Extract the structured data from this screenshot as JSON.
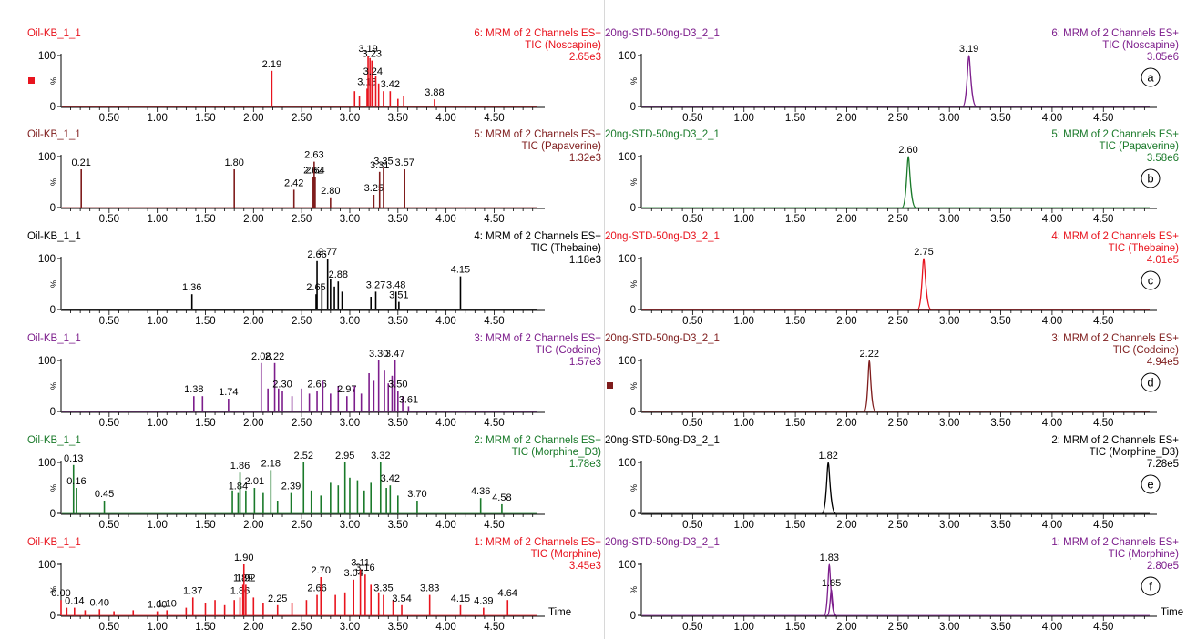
{
  "colors": {
    "red": "#e8141e",
    "maroon": "#7f1d1d",
    "black": "#000000",
    "purple": "#7d1e8c",
    "green": "#1a7a2a"
  },
  "x_axis": {
    "ticks": [
      "0.50",
      "1.00",
      "1.50",
      "2.00",
      "2.50",
      "3.00",
      "3.50",
      "4.00",
      "4.50"
    ],
    "label": "Time",
    "range": [
      0,
      4.95
    ]
  },
  "y_axis": {
    "ticks": [
      "100",
      "0"
    ],
    "unit": "%"
  },
  "chart_data": [
    {
      "type": "line",
      "column": "left",
      "row": 0,
      "color_key": "red",
      "marker": true,
      "sample": "Oil-KB_1_1",
      "channel": "6: MRM of 2 Channels ES+",
      "compound": "TIC (Noscapine)",
      "intensity": "2.65e3",
      "ylim": [
        0,
        100
      ],
      "peaks": [
        {
          "x": 2.19,
          "y": 70,
          "label": "2.19"
        },
        {
          "x": 3.05,
          "y": 30
        },
        {
          "x": 3.1,
          "y": 20
        },
        {
          "x": 3.18,
          "y": 35,
          "label": "3.18"
        },
        {
          "x": 3.19,
          "y": 100,
          "label": "3.19"
        },
        {
          "x": 3.21,
          "y": 95
        },
        {
          "x": 3.23,
          "y": 90,
          "label": "3.23"
        },
        {
          "x": 3.24,
          "y": 55,
          "label": "3.24"
        },
        {
          "x": 3.27,
          "y": 60
        },
        {
          "x": 3.3,
          "y": 45
        },
        {
          "x": 3.35,
          "y": 30
        },
        {
          "x": 3.42,
          "y": 30,
          "label": "3.42"
        },
        {
          "x": 3.5,
          "y": 15
        },
        {
          "x": 3.56,
          "y": 20
        },
        {
          "x": 3.88,
          "y": 14,
          "label": "3.88"
        }
      ]
    },
    {
      "type": "line",
      "column": "left",
      "row": 1,
      "color_key": "maroon",
      "sample": "Oil-KB_1_1",
      "channel": "5: MRM of 2 Channels ES+",
      "compound": "TIC (Papaverine)",
      "intensity": "1.32e3",
      "ylim": [
        0,
        100
      ],
      "peaks": [
        {
          "x": 0.21,
          "y": 75,
          "label": "0.21"
        },
        {
          "x": 1.8,
          "y": 75,
          "label": "1.80"
        },
        {
          "x": 2.42,
          "y": 35,
          "label": "2.42"
        },
        {
          "x": 2.62,
          "y": 60,
          "label": "2.62"
        },
        {
          "x": 2.63,
          "y": 90,
          "label": "2.63"
        },
        {
          "x": 2.64,
          "y": 60,
          "label": "2.64"
        },
        {
          "x": 2.8,
          "y": 20,
          "label": "2.80"
        },
        {
          "x": 3.25,
          "y": 25,
          "label": "3.25"
        },
        {
          "x": 3.31,
          "y": 70,
          "label": "3.31"
        },
        {
          "x": 3.35,
          "y": 78,
          "label": "3.35"
        },
        {
          "x": 3.57,
          "y": 75,
          "label": "3.57"
        }
      ]
    },
    {
      "type": "line",
      "column": "left",
      "row": 2,
      "color_key": "black",
      "sample": "Oil-KB_1_1",
      "channel": "4: MRM of 2 Channels ES+",
      "compound": "TIC (Thebaine)",
      "intensity": "1.18e3",
      "ylim": [
        0,
        100
      ],
      "peaks": [
        {
          "x": 1.36,
          "y": 30,
          "label": "1.36"
        },
        {
          "x": 2.65,
          "y": 30,
          "label": "2.65"
        },
        {
          "x": 2.66,
          "y": 95,
          "label": "2.66"
        },
        {
          "x": 2.71,
          "y": 50
        },
        {
          "x": 2.77,
          "y": 100,
          "label": "2.77"
        },
        {
          "x": 2.8,
          "y": 60
        },
        {
          "x": 2.84,
          "y": 45
        },
        {
          "x": 2.88,
          "y": 55,
          "label": "2.88"
        },
        {
          "x": 2.92,
          "y": 35
        },
        {
          "x": 3.22,
          "y": 25
        },
        {
          "x": 3.27,
          "y": 35,
          "label": "3.27"
        },
        {
          "x": 3.48,
          "y": 35,
          "label": "3.48"
        },
        {
          "x": 3.51,
          "y": 15,
          "label": "3.51"
        },
        {
          "x": 4.15,
          "y": 65,
          "label": "4.15"
        }
      ]
    },
    {
      "type": "line",
      "column": "left",
      "row": 3,
      "color_key": "purple",
      "sample": "Oil-KB_1_1",
      "channel": "3: MRM of 2 Channels ES+",
      "compound": "TIC (Codeine)",
      "intensity": "1.57e3",
      "ylim": [
        0,
        100
      ],
      "peaks": [
        {
          "x": 1.38,
          "y": 30,
          "label": "1.38"
        },
        {
          "x": 1.47,
          "y": 30
        },
        {
          "x": 1.74,
          "y": 25,
          "label": "1.74"
        },
        {
          "x": 2.08,
          "y": 95,
          "label": "2.08"
        },
        {
          "x": 2.15,
          "y": 45
        },
        {
          "x": 2.22,
          "y": 95,
          "label": "2.22"
        },
        {
          "x": 2.26,
          "y": 45
        },
        {
          "x": 2.3,
          "y": 40,
          "label": "2.30"
        },
        {
          "x": 2.4,
          "y": 30
        },
        {
          "x": 2.5,
          "y": 45
        },
        {
          "x": 2.58,
          "y": 35
        },
        {
          "x": 2.66,
          "y": 40,
          "label": "2.66"
        },
        {
          "x": 2.72,
          "y": 60
        },
        {
          "x": 2.8,
          "y": 35
        },
        {
          "x": 2.88,
          "y": 50
        },
        {
          "x": 2.97,
          "y": 30,
          "label": "2.97"
        },
        {
          "x": 3.05,
          "y": 50
        },
        {
          "x": 3.12,
          "y": 35
        },
        {
          "x": 3.2,
          "y": 75
        },
        {
          "x": 3.25,
          "y": 60
        },
        {
          "x": 3.3,
          "y": 100,
          "label": "3.30"
        },
        {
          "x": 3.36,
          "y": 80
        },
        {
          "x": 3.4,
          "y": 55
        },
        {
          "x": 3.44,
          "y": 70
        },
        {
          "x": 3.47,
          "y": 100,
          "label": "3.47"
        },
        {
          "x": 3.5,
          "y": 40,
          "label": "3.50"
        },
        {
          "x": 3.55,
          "y": 30
        },
        {
          "x": 3.61,
          "y": 10,
          "label": "3.61"
        }
      ]
    },
    {
      "type": "line",
      "column": "left",
      "row": 4,
      "color_key": "green",
      "sample": "Oil-KB_1_1",
      "channel": "2: MRM of 2 Channels ES+",
      "compound": "TIC (Morphine_D3)",
      "intensity": "1.78e3",
      "ylim": [
        0,
        100
      ],
      "peaks": [
        {
          "x": 0.13,
          "y": 95,
          "label": "0.13"
        },
        {
          "x": 0.16,
          "y": 50,
          "label": "0.16"
        },
        {
          "x": 0.45,
          "y": 25,
          "label": "0.45"
        },
        {
          "x": 1.78,
          "y": 45
        },
        {
          "x": 1.84,
          "y": 40,
          "label": "1.84"
        },
        {
          "x": 1.86,
          "y": 80,
          "label": "1.86"
        },
        {
          "x": 1.92,
          "y": 45
        },
        {
          "x": 2.01,
          "y": 50,
          "label": "2.01"
        },
        {
          "x": 2.1,
          "y": 40
        },
        {
          "x": 2.18,
          "y": 85,
          "label": "2.18"
        },
        {
          "x": 2.25,
          "y": 25
        },
        {
          "x": 2.39,
          "y": 40,
          "label": "2.39"
        },
        {
          "x": 2.52,
          "y": 100,
          "label": "2.52"
        },
        {
          "x": 2.6,
          "y": 45
        },
        {
          "x": 2.7,
          "y": 35
        },
        {
          "x": 2.8,
          "y": 60
        },
        {
          "x": 2.88,
          "y": 55
        },
        {
          "x": 2.95,
          "y": 100,
          "label": "2.95"
        },
        {
          "x": 3.0,
          "y": 70
        },
        {
          "x": 3.08,
          "y": 65
        },
        {
          "x": 3.15,
          "y": 45
        },
        {
          "x": 3.22,
          "y": 60
        },
        {
          "x": 3.32,
          "y": 100,
          "label": "3.32"
        },
        {
          "x": 3.38,
          "y": 50
        },
        {
          "x": 3.42,
          "y": 55,
          "label": "3.42"
        },
        {
          "x": 3.5,
          "y": 35
        },
        {
          "x": 3.7,
          "y": 25,
          "label": "3.70"
        },
        {
          "x": 4.36,
          "y": 30,
          "label": "4.36"
        },
        {
          "x": 4.58,
          "y": 18,
          "label": "4.58"
        }
      ]
    },
    {
      "type": "line",
      "column": "left",
      "row": 5,
      "color_key": "red",
      "show_time_label": true,
      "sample": "Oil-KB_1_1",
      "channel": "1: MRM of 2 Channels ES+",
      "compound": "TIC (Morphine)",
      "intensity": "3.45e3",
      "ylim": [
        0,
        100
      ],
      "peaks": [
        {
          "x": 0.0,
          "y": 30,
          "label": "0.00"
        },
        {
          "x": 0.06,
          "y": 15
        },
        {
          "x": 0.14,
          "y": 15,
          "label": "0.14"
        },
        {
          "x": 0.25,
          "y": 10
        },
        {
          "x": 0.4,
          "y": 12,
          "label": "0.40"
        },
        {
          "x": 0.55,
          "y": 8
        },
        {
          "x": 0.75,
          "y": 10
        },
        {
          "x": 1.0,
          "y": 8,
          "label": "1.00"
        },
        {
          "x": 1.1,
          "y": 10,
          "label": "1.10"
        },
        {
          "x": 1.3,
          "y": 15
        },
        {
          "x": 1.37,
          "y": 35,
          "label": "1.37"
        },
        {
          "x": 1.5,
          "y": 25
        },
        {
          "x": 1.6,
          "y": 30
        },
        {
          "x": 1.7,
          "y": 20
        },
        {
          "x": 1.8,
          "y": 30
        },
        {
          "x": 1.86,
          "y": 35,
          "label": "1.86"
        },
        {
          "x": 1.89,
          "y": 60,
          "label": "1.89"
        },
        {
          "x": 1.9,
          "y": 100,
          "label": "1.90"
        },
        {
          "x": 1.92,
          "y": 60,
          "label": "1.92"
        },
        {
          "x": 2.0,
          "y": 35
        },
        {
          "x": 2.1,
          "y": 25
        },
        {
          "x": 2.25,
          "y": 20,
          "label": "2.25"
        },
        {
          "x": 2.4,
          "y": 25
        },
        {
          "x": 2.55,
          "y": 30
        },
        {
          "x": 2.66,
          "y": 40,
          "label": "2.66"
        },
        {
          "x": 2.7,
          "y": 75,
          "label": "2.70"
        },
        {
          "x": 2.85,
          "y": 40
        },
        {
          "x": 2.95,
          "y": 45
        },
        {
          "x": 3.04,
          "y": 70,
          "label": "3.04"
        },
        {
          "x": 3.11,
          "y": 90,
          "label": "3.11"
        },
        {
          "x": 3.16,
          "y": 80,
          "label": "3.16"
        },
        {
          "x": 3.22,
          "y": 60
        },
        {
          "x": 3.3,
          "y": 45
        },
        {
          "x": 3.35,
          "y": 40,
          "label": "3.35"
        },
        {
          "x": 3.45,
          "y": 30
        },
        {
          "x": 3.54,
          "y": 20,
          "label": "3.54"
        },
        {
          "x": 3.83,
          "y": 40,
          "label": "3.83"
        },
        {
          "x": 4.15,
          "y": 20,
          "label": "4.15"
        },
        {
          "x": 4.39,
          "y": 15,
          "label": "4.39"
        },
        {
          "x": 4.64,
          "y": 30,
          "label": "4.64"
        }
      ]
    },
    {
      "type": "line",
      "column": "right",
      "row": 0,
      "color_key": "purple",
      "panel_letter": "a",
      "sample": "20ng-STD-50ng-D3_2_1",
      "channel": "6: MRM of 2 Channels ES+",
      "compound": "TIC (Noscapine)",
      "intensity": "3.05e6",
      "ylim": [
        0,
        100
      ],
      "peaks": [
        {
          "x": 3.19,
          "y": 100,
          "label": "3.19",
          "width": 0.03
        }
      ]
    },
    {
      "type": "line",
      "column": "right",
      "row": 1,
      "color_key": "green",
      "panel_letter": "b",
      "sample": "20ng-STD-50ng-D3_2_1",
      "channel": "5: MRM of 2 Channels ES+",
      "compound": "TIC (Papaverine)",
      "intensity": "3.58e6",
      "ylim": [
        0,
        100
      ],
      "peaks": [
        {
          "x": 2.6,
          "y": 100,
          "label": "2.60",
          "width": 0.03
        }
      ]
    },
    {
      "type": "line",
      "column": "right",
      "row": 2,
      "color_key": "red",
      "panel_letter": "c",
      "sample": "20ng-STD-50ng-D3_2_1",
      "channel": "4: MRM of 2 Channels ES+",
      "compound": "TIC (Thebaine)",
      "intensity": "4.01e5",
      "ylim": [
        0,
        100
      ],
      "peaks": [
        {
          "x": 2.75,
          "y": 100,
          "label": "2.75",
          "width": 0.03
        }
      ]
    },
    {
      "type": "line",
      "column": "right",
      "row": 3,
      "color_key": "maroon",
      "panel_letter": "d",
      "marker": true,
      "sample": "20ng-STD-50ng-D3_2_1",
      "channel": "3: MRM of 2 Channels ES+",
      "compound": "TIC (Codeine)",
      "intensity": "4.94e5",
      "ylim": [
        0,
        100
      ],
      "peaks": [
        {
          "x": 2.22,
          "y": 100,
          "label": "2.22",
          "width": 0.025
        }
      ]
    },
    {
      "type": "line",
      "column": "right",
      "row": 4,
      "color_key": "black",
      "panel_letter": "e",
      "sample": "20ng-STD-50ng-D3_2_1",
      "channel": "2: MRM of 2 Channels ES+",
      "compound": "TIC (Morphine_D3)",
      "intensity": "7.28e5",
      "ylim": [
        0,
        100
      ],
      "peaks": [
        {
          "x": 1.82,
          "y": 100,
          "label": "1.82",
          "width": 0.03
        }
      ]
    },
    {
      "type": "line",
      "column": "right",
      "row": 5,
      "color_key": "purple",
      "panel_letter": "f",
      "show_time_label": true,
      "sample": "20ng-STD-50ng-D3_2_1",
      "channel": "1: MRM of 2 Channels ES+",
      "compound": "TIC (Morphine)",
      "intensity": "2.80e5",
      "ylim": [
        0,
        100
      ],
      "peaks": [
        {
          "x": 1.83,
          "y": 100,
          "label": "1.83",
          "width": 0.025
        },
        {
          "x": 1.85,
          "y": 50,
          "label": "1.85",
          "width": 0.02
        }
      ]
    }
  ]
}
